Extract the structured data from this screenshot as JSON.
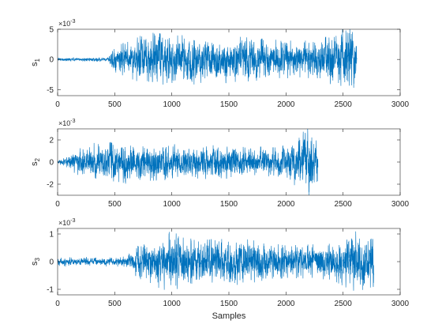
{
  "chart_data": {
    "type": "line",
    "xlabel": "Samples",
    "line_color": "#0072BD",
    "panels": [
      {
        "ylabel": "s",
        "ylabel_sub": "1",
        "exponent_base": "×10",
        "exponent_power": "-3",
        "xlim": [
          0,
          3000
        ],
        "ylim": [
          -6,
          5
        ],
        "xticks": [
          0,
          500,
          1000,
          1500,
          2000,
          2500,
          3000
        ],
        "yticks": [
          -5,
          0,
          5
        ],
        "series": [
          {
            "length": 2620,
            "envelope": [
              {
                "x": 0,
                "amp": 0.25
              },
              {
                "x": 440,
                "amp": 0.25
              },
              {
                "x": 480,
                "amp": 1.5
              },
              {
                "x": 700,
                "amp": 2.8
              },
              {
                "x": 800,
                "amp": 3.6
              },
              {
                "x": 1000,
                "amp": 3.0
              },
              {
                "x": 1200,
                "amp": 3.2
              },
              {
                "x": 1500,
                "amp": 3.0
              },
              {
                "x": 2000,
                "amp": 2.4
              },
              {
                "x": 2300,
                "amp": 2.4
              },
              {
                "x": 2400,
                "amp": 3.4
              },
              {
                "x": 2550,
                "amp": 4.6
              },
              {
                "x": 2620,
                "amp": 3.6
              }
            ]
          }
        ]
      },
      {
        "ylabel": "s",
        "ylabel_sub": "2",
        "exponent_base": "×10",
        "exponent_power": "-3",
        "xlim": [
          0,
          3000
        ],
        "ylim": [
          -3,
          3
        ],
        "xticks": [
          0,
          500,
          1000,
          1500,
          2000,
          2500,
          3000
        ],
        "yticks": [
          -2,
          0,
          2
        ],
        "series": [
          {
            "length": 2280,
            "envelope": [
              {
                "x": 0,
                "amp": 0.15
              },
              {
                "x": 60,
                "amp": 0.25
              },
              {
                "x": 120,
                "amp": 0.7
              },
              {
                "x": 300,
                "amp": 1.3
              },
              {
                "x": 500,
                "amp": 1.6
              },
              {
                "x": 800,
                "amp": 1.3
              },
              {
                "x": 1200,
                "amp": 1.2
              },
              {
                "x": 1700,
                "amp": 1.1
              },
              {
                "x": 1950,
                "amp": 1.0
              },
              {
                "x": 2100,
                "amp": 1.8
              },
              {
                "x": 2200,
                "amp": 2.4
              },
              {
                "x": 2280,
                "amp": 1.6
              }
            ]
          }
        ]
      },
      {
        "ylabel": "s",
        "ylabel_sub": "3",
        "exponent_base": "×10",
        "exponent_power": "-3",
        "xlim": [
          0,
          3000
        ],
        "ylim": [
          -1.2,
          1.2
        ],
        "xticks": [
          0,
          500,
          1000,
          1500,
          2000,
          2500,
          3000
        ],
        "yticks": [
          -1,
          0,
          1
        ],
        "series": [
          {
            "length": 2770,
            "envelope": [
              {
                "x": 0,
                "amp": 0.12
              },
              {
                "x": 600,
                "amp": 0.14
              },
              {
                "x": 700,
                "amp": 0.45
              },
              {
                "x": 900,
                "amp": 0.75
              },
              {
                "x": 1000,
                "amp": 0.85
              },
              {
                "x": 1200,
                "amp": 0.6
              },
              {
                "x": 1600,
                "amp": 0.65
              },
              {
                "x": 2000,
                "amp": 0.45
              },
              {
                "x": 2400,
                "amp": 0.5
              },
              {
                "x": 2600,
                "amp": 0.85
              },
              {
                "x": 2770,
                "amp": 0.7
              }
            ]
          }
        ]
      }
    ]
  }
}
